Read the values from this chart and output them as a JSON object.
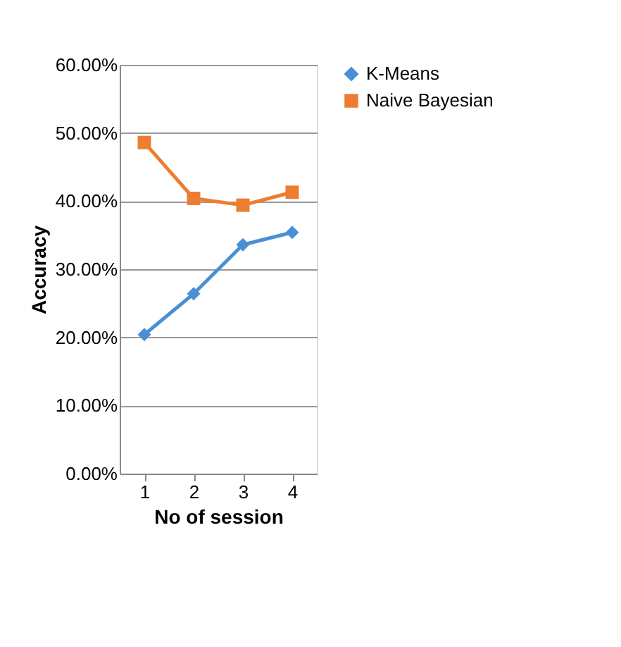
{
  "chart_data": {
    "type": "line",
    "xlabel": "No of session",
    "ylabel": "Accuracy",
    "categories": [
      "1",
      "2",
      "3",
      "4"
    ],
    "series": [
      {
        "name": "K-Means",
        "color": "#4a8fd4",
        "marker": "diamond",
        "values": [
          0.204,
          0.264,
          0.336,
          0.354
        ]
      },
      {
        "name": "Naive Bayesian",
        "color": "#ed7d31",
        "marker": "square",
        "values": [
          0.486,
          0.404,
          0.394,
          0.413
        ]
      }
    ],
    "ylim": [
      0,
      0.6
    ],
    "yticks": [
      {
        "value": 0,
        "label": "0.00%"
      },
      {
        "value": 0.1,
        "label": "10.00%"
      },
      {
        "value": 0.2,
        "label": "20.00%"
      },
      {
        "value": 0.3,
        "label": "30.00%"
      },
      {
        "value": 0.4,
        "label": "40.00%"
      },
      {
        "value": 0.5,
        "label": "50.00%"
      },
      {
        "value": 0.6,
        "label": "60.00%"
      }
    ],
    "grid": "y",
    "legend": "right",
    "line_style": "solid"
  }
}
